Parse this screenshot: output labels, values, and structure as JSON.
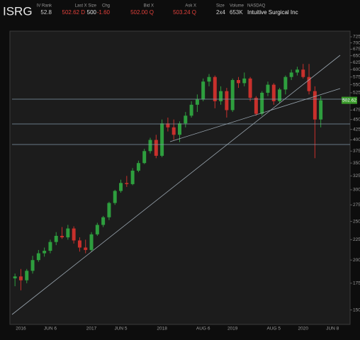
{
  "header": {
    "symbol": "ISRG",
    "fields": [
      {
        "label": "IV Rank",
        "value": "52.8",
        "color": "#d0d0d0"
      },
      {
        "label": "Last X Size",
        "value": "502.62 D",
        "extra": "500",
        "color": "#e0403a"
      },
      {
        "label": "Chg",
        "value": "-1.60",
        "color": "#e0403a"
      },
      {
        "label": "Bid X",
        "value": "502.00 Q",
        "color": "#e0403a"
      },
      {
        "label": "Ask X",
        "value": "503.24 Q",
        "color": "#e0403a"
      },
      {
        "label": "Size",
        "value": "2x4",
        "color": "#d0d0d0"
      },
      {
        "label": "Volume",
        "value": "653K",
        "color": "#d0d0d0"
      },
      {
        "label": "NASDAQ",
        "value": "Intuitive Surgical Inc",
        "color": "#e8e8e8"
      }
    ]
  },
  "chart_data": {
    "type": "candlestick",
    "categories": [
      null,
      "2016",
      null,
      null,
      null,
      null,
      "JUN 6",
      null,
      null,
      null,
      null,
      null,
      null,
      "2017",
      null,
      null,
      null,
      null,
      "JUN 5",
      null,
      null,
      null,
      null,
      null,
      null,
      "2018",
      null,
      null,
      null,
      null,
      null,
      null,
      "AUG 6",
      null,
      null,
      null,
      null,
      "2019",
      null,
      null,
      null,
      null,
      null,
      null,
      "AUG 5",
      null,
      null,
      null,
      null,
      "2020",
      null,
      null,
      null,
      null,
      "JUN 8",
      null,
      null
    ],
    "open": [
      180,
      182,
      178,
      188,
      200,
      208,
      211,
      222,
      230,
      228,
      240,
      224,
      215,
      212,
      232,
      245,
      256,
      278,
      298,
      312,
      310,
      335,
      350,
      375,
      400,
      365,
      440,
      430,
      412,
      440,
      460,
      490,
      505,
      560,
      575,
      500,
      530,
      475,
      565,
      555,
      570,
      510,
      465,
      525,
      550,
      500,
      535,
      575,
      590,
      600,
      575,
      530,
      450,
      null,
      null,
      null,
      null
    ],
    "high": [
      185,
      190,
      190,
      205,
      212,
      215,
      225,
      235,
      242,
      245,
      243,
      228,
      225,
      235,
      248,
      258,
      280,
      300,
      318,
      325,
      340,
      355,
      380,
      405,
      412,
      450,
      455,
      450,
      445,
      470,
      500,
      520,
      570,
      585,
      580,
      545,
      540,
      570,
      575,
      590,
      575,
      515,
      530,
      560,
      555,
      540,
      580,
      600,
      610,
      620,
      620,
      545,
      515,
      null,
      null,
      null,
      null
    ],
    "low": [
      172,
      168,
      175,
      185,
      198,
      204,
      208,
      218,
      226,
      225,
      220,
      210,
      208,
      210,
      230,
      242,
      252,
      275,
      295,
      305,
      308,
      332,
      348,
      370,
      360,
      362,
      420,
      400,
      395,
      430,
      455,
      470,
      500,
      545,
      480,
      490,
      455,
      470,
      540,
      545,
      500,
      460,
      460,
      515,
      490,
      495,
      520,
      565,
      580,
      570,
      520,
      360,
      430,
      null,
      null,
      null,
      null
    ],
    "close": [
      182,
      178,
      188,
      200,
      208,
      211,
      222,
      230,
      228,
      240,
      224,
      215,
      212,
      232,
      245,
      256,
      278,
      298,
      312,
      310,
      335,
      350,
      375,
      400,
      365,
      440,
      430,
      412,
      440,
      460,
      490,
      505,
      560,
      575,
      500,
      530,
      475,
      565,
      555,
      570,
      510,
      465,
      525,
      550,
      500,
      535,
      575,
      590,
      600,
      575,
      530,
      450,
      502.62,
      null,
      null,
      null,
      null
    ],
    "last_label": "502.62",
    "up_color": "#2e9e3e",
    "down_color": "#c8302c",
    "ylim": [
      138,
      749
    ],
    "log_scale": true,
    "yticks": [
      150,
      175,
      200,
      225,
      250,
      275,
      300,
      325,
      350,
      375,
      400,
      425,
      450,
      475,
      525,
      550,
      575,
      600,
      625,
      650,
      675,
      700,
      725
    ]
  }
}
